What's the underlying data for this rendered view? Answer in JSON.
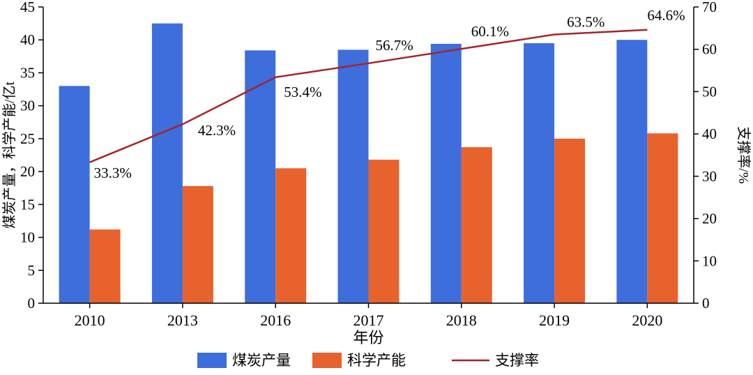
{
  "chart_data": {
    "type": "bar",
    "subtype": "bar+line-combo",
    "categories": [
      "2010",
      "2013",
      "2016",
      "2017",
      "2018",
      "2019",
      "2020"
    ],
    "series": [
      {
        "name": "煤炭产量",
        "data_name": "coal-output",
        "type": "bar",
        "axis": "left",
        "color": "#3D6EDC",
        "values": [
          33.0,
          42.5,
          38.4,
          38.5,
          39.4,
          39.5,
          40.0
        ]
      },
      {
        "name": "科学产能",
        "data_name": "scientific-capacity",
        "type": "bar",
        "axis": "left",
        "color": "#E8622D",
        "values": [
          11.2,
          17.8,
          20.5,
          21.8,
          23.7,
          25.0,
          25.8
        ]
      },
      {
        "name": "支撑率",
        "data_name": "support-rate",
        "type": "line",
        "axis": "right",
        "color": "#A6232A",
        "values": [
          33.3,
          42.3,
          53.4,
          56.7,
          60.1,
          63.5,
          64.6
        ],
        "labels": [
          "33.3%",
          "42.3%",
          "53.4%",
          "56.7%",
          "60.1%",
          "63.5%",
          "64.6%"
        ]
      }
    ],
    "xlabel": "年份",
    "ylabel_left": "煤炭产量，科学产能/亿t",
    "ylabel_right": "支撑率/%",
    "ylim_left": [
      0,
      45
    ],
    "ytick_step_left": 5,
    "ylim_right": [
      0,
      70
    ],
    "ytick_step_right": 10,
    "grid": false,
    "legend_position": "bottom"
  }
}
